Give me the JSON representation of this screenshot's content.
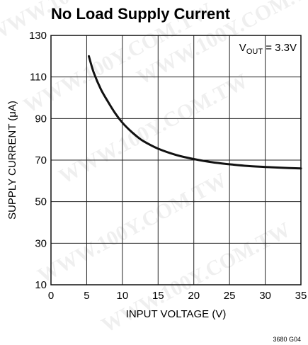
{
  "chart_data": {
    "type": "line",
    "title": "No Load Supply Current",
    "xlabel": "INPUT VOLTAGE (V)",
    "ylabel": "SUPPLY CURRENT (μA)",
    "xlim": [
      0,
      35
    ],
    "ylim": [
      10,
      130
    ],
    "xticks": [
      0,
      5,
      10,
      15,
      20,
      25,
      30,
      35
    ],
    "yticks": [
      10,
      30,
      50,
      70,
      90,
      110,
      130
    ],
    "grid": true,
    "annotation": {
      "main": "V",
      "sub": "OUT",
      "tail": " = 3.3V"
    },
    "series": [
      {
        "name": "",
        "color": "#111111",
        "x": [
          5.3,
          6,
          7,
          8,
          9,
          10,
          11,
          12,
          13,
          15,
          17.5,
          20,
          22.5,
          25,
          27.5,
          30,
          32.5,
          35
        ],
        "y": [
          120,
          112,
          104,
          98,
          92.5,
          88,
          84.5,
          81.5,
          79,
          75.5,
          72.5,
          70.5,
          69,
          68,
          67.2,
          66.7,
          66.3,
          66
        ]
      }
    ]
  },
  "watermark": "WWW.100Y.COM.TW",
  "footnote": "3680 G04"
}
